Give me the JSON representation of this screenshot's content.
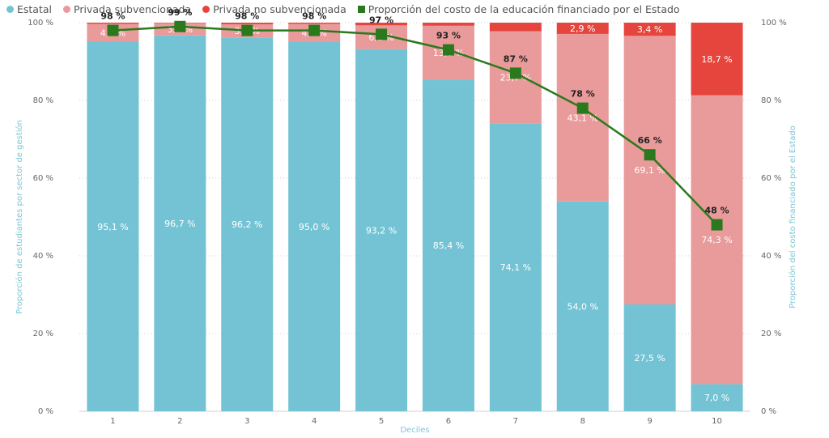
{
  "legend": {
    "items": [
      {
        "label": "Estatal",
        "color": "#74c3d4",
        "shape": "dot"
      },
      {
        "label": "Privada subvencionada",
        "color": "#e99a9a",
        "shape": "dot"
      },
      {
        "label": "Privada no subvencionada",
        "color": "#e6453d",
        "shape": "dot"
      },
      {
        "label": "Proporción del costo de la educación financiado por el Estado",
        "color": "#2a7a1d",
        "shape": "square"
      }
    ]
  },
  "chart_data": {
    "type": "bar",
    "stacked": true,
    "categories": [
      "1",
      "2",
      "3",
      "4",
      "5",
      "6",
      "7",
      "8",
      "9",
      "10"
    ],
    "xlabel": "Deciles",
    "ylabel": "Proporción de estudiantes por sector de gestión",
    "ylabel_right": "Proporción del costo financiado por el Estado",
    "ylim": [
      0,
      100
    ],
    "y_ticks": [
      "0 %",
      "20 %",
      "40 %",
      "60 %",
      "80 %",
      "100 %"
    ],
    "y_ticks_right": [
      "0 %",
      "20 %",
      "40 %",
      "60 %",
      "80 %",
      "100 %"
    ],
    "grid": true,
    "legend_position": "top-left",
    "series": [
      {
        "name": "Estatal",
        "color": "#74c3d4",
        "values": [
          95.1,
          96.7,
          96.2,
          95.0,
          93.2,
          85.4,
          74.1,
          54.0,
          27.5,
          7.0
        ],
        "labels": [
          "95,1 %",
          "96,7 %",
          "96,2 %",
          "95,0 %",
          "93,2 %",
          "85,4 %",
          "74,1 %",
          "54,0 %",
          "27,5 %",
          "7,0 %"
        ]
      },
      {
        "name": "Privada subvencionada",
        "color": "#e99a9a",
        "values": [
          4.6,
          3.2,
          3.4,
          4.7,
          6.1,
          13.8,
          23.7,
          43.1,
          69.1,
          74.3
        ],
        "labels": [
          "4,6 %",
          "3,2 %",
          "3,4 %",
          "4,7 %",
          "6,1 %",
          "13,8 %",
          "23,7 %",
          "43,1 %",
          "69,1 %",
          "74,3 %"
        ]
      },
      {
        "name": "Privada no subvencionada",
        "color": "#e6453d",
        "values": [
          0.3,
          0.1,
          0.4,
          0.3,
          0.7,
          0.8,
          2.2,
          2.9,
          3.4,
          18.7
        ],
        "labels": [
          "",
          "",
          "",
          "",
          "",
          "",
          "",
          "2,9 %",
          "3,4 %",
          "18,7 %"
        ]
      }
    ],
    "line_series": {
      "name": "Proporción del costo de la educación financiado por el Estado",
      "color": "#2a7a1d",
      "values": [
        98,
        99,
        98,
        98,
        97,
        93,
        87,
        78,
        66,
        48
      ],
      "labels": [
        "98 %",
        "99 %",
        "98 %",
        "98 %",
        "97 %",
        "93 %",
        "87 %",
        "78 %",
        "66 %",
        "48 %"
      ]
    }
  }
}
